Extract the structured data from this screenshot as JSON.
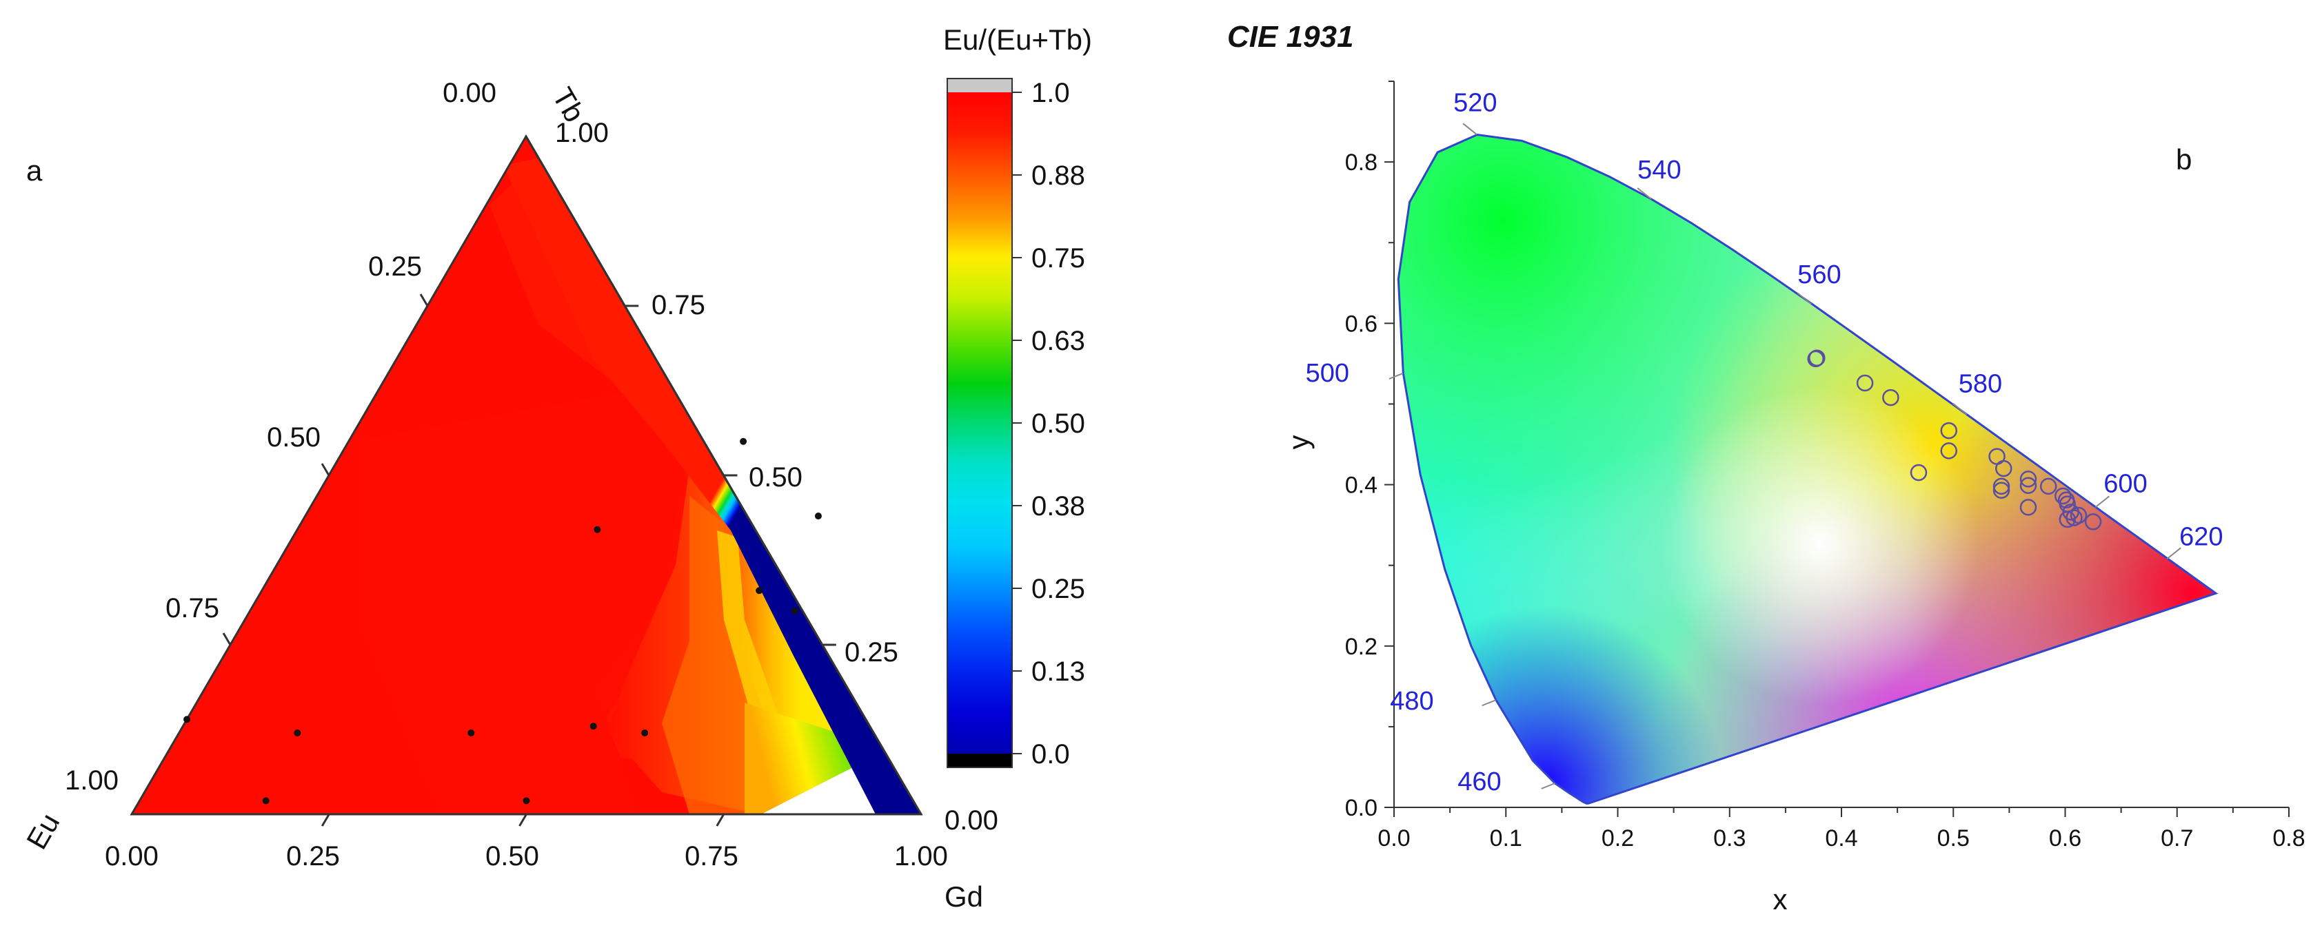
{
  "panel_a": {
    "label": "a",
    "colorbar": {
      "title": "Eu/(Eu+Tb)",
      "ticks": [
        "1.0",
        "0.88",
        "0.75",
        "0.63",
        "0.50",
        "0.38",
        "0.25",
        "0.13",
        "0.0"
      ],
      "tick_values": [
        1.0,
        0.875,
        0.75,
        0.625,
        0.5,
        0.375,
        0.25,
        0.125,
        0.0
      ]
    },
    "axes": {
      "gd": {
        "label": "Gd",
        "ticks": [
          "0.00",
          "0.25",
          "0.50",
          "0.75",
          "1.00"
        ]
      },
      "tb": {
        "label": "Tb",
        "ticks": [
          "0.00",
          "0.25",
          "0.50",
          "0.75",
          "1.00"
        ]
      },
      "eu": {
        "label": "Eu",
        "ticks": [
          "0.00",
          "0.25",
          "0.50",
          "0.75",
          "1.00"
        ]
      }
    }
  },
  "panel_b": {
    "label": "b",
    "title": "CIE 1931"
  },
  "chart_data": [
    {
      "type": "ternary_contour",
      "title": "",
      "components": [
        "Gd",
        "Tb",
        "Eu"
      ],
      "colorbar_label": "Eu/(Eu+Tb)",
      "color_range": [
        0.0,
        1.0
      ],
      "sample_points_gd_tb_eu": [
        [
          0.0,
          0.14,
          0.86
        ],
        [
          0.15,
          0.12,
          0.73
        ],
        [
          0.16,
          0.02,
          0.82
        ],
        [
          0.37,
          0.12,
          0.51
        ],
        [
          0.49,
          0.02,
          0.49
        ],
        [
          0.38,
          0.42,
          0.2
        ],
        [
          0.5,
          0.55,
          -0.05
        ],
        [
          0.52,
          0.13,
          0.35
        ],
        [
          0.59,
          0.12,
          0.29
        ],
        [
          0.63,
          0.33,
          0.04
        ],
        [
          0.65,
          0.44,
          -0.09
        ],
        [
          0.69,
          0.3,
          0.01
        ]
      ]
    },
    {
      "type": "scatter",
      "title": "CIE 1931",
      "xlabel": "x",
      "ylabel": "y",
      "xlim": [
        0.0,
        0.8
      ],
      "ylim": [
        0.0,
        0.9
      ],
      "x_ticks": [
        "0.0",
        "0.1",
        "0.2",
        "0.3",
        "0.4",
        "0.5",
        "0.6",
        "0.7",
        "0.8"
      ],
      "y_ticks": [
        "0.0",
        "0.2",
        "0.4",
        "0.6",
        "0.8"
      ],
      "wavelength_labels": [
        {
          "label": "460",
          "x": 0.144,
          "y": 0.03
        },
        {
          "label": "480",
          "x": 0.091,
          "y": 0.133
        },
        {
          "label": "500",
          "x": 0.008,
          "y": 0.538
        },
        {
          "label": "520",
          "x": 0.074,
          "y": 0.834
        },
        {
          "label": "540",
          "x": 0.23,
          "y": 0.754
        },
        {
          "label": "560",
          "x": 0.373,
          "y": 0.624
        },
        {
          "label": "580",
          "x": 0.512,
          "y": 0.487
        },
        {
          "label": "600",
          "x": 0.627,
          "y": 0.372
        },
        {
          "label": "620",
          "x": 0.691,
          "y": 0.308
        }
      ],
      "points": [
        {
          "x": 0.378,
          "y": 0.557
        },
        {
          "x": 0.377,
          "y": 0.556
        },
        {
          "x": 0.421,
          "y": 0.526
        },
        {
          "x": 0.444,
          "y": 0.508
        },
        {
          "x": 0.496,
          "y": 0.467
        },
        {
          "x": 0.496,
          "y": 0.442
        },
        {
          "x": 0.469,
          "y": 0.415
        },
        {
          "x": 0.539,
          "y": 0.435
        },
        {
          "x": 0.545,
          "y": 0.42
        },
        {
          "x": 0.543,
          "y": 0.398
        },
        {
          "x": 0.543,
          "y": 0.393
        },
        {
          "x": 0.567,
          "y": 0.407
        },
        {
          "x": 0.567,
          "y": 0.399
        },
        {
          "x": 0.567,
          "y": 0.372
        },
        {
          "x": 0.585,
          "y": 0.398
        },
        {
          "x": 0.598,
          "y": 0.386
        },
        {
          "x": 0.601,
          "y": 0.381
        },
        {
          "x": 0.602,
          "y": 0.376
        },
        {
          "x": 0.605,
          "y": 0.366
        },
        {
          "x": 0.612,
          "y": 0.362
        },
        {
          "x": 0.602,
          "y": 0.357
        },
        {
          "x": 0.608,
          "y": 0.359
        },
        {
          "x": 0.625,
          "y": 0.354
        }
      ]
    }
  ]
}
